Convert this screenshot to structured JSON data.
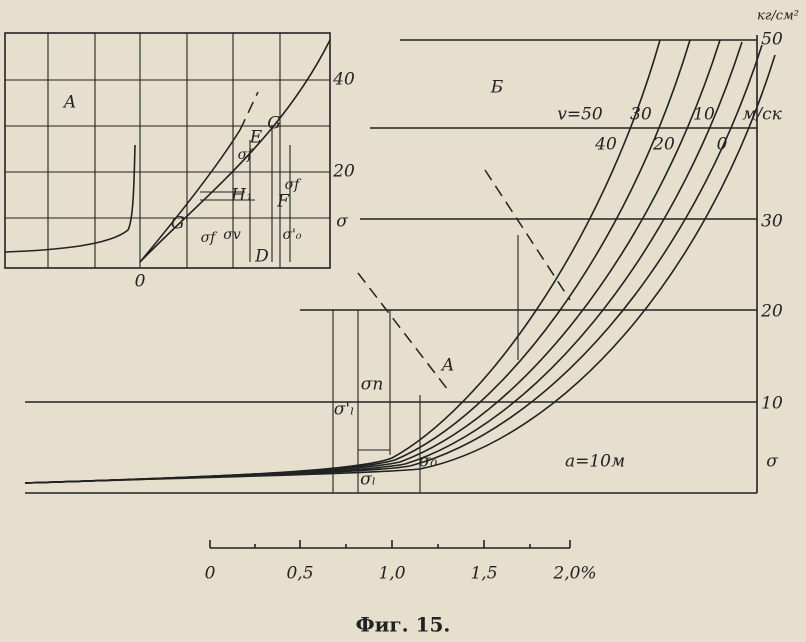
{
  "figure": {
    "caption": "Фиг. 15.",
    "panel_b": {
      "label": "Б",
      "unit": "кг/см²",
      "y_axis_symbol": "σ",
      "y_tick_labels": [
        "50",
        "30",
        "20",
        "10"
      ],
      "x_tick_labels": [
        "0",
        "0,5",
        "1,0",
        "1,5",
        "2,0%"
      ],
      "speed_prefix": "v=50",
      "speed_labels": [
        "40",
        "30",
        "20",
        "10",
        "0"
      ],
      "speed_unit": "м/ск",
      "point_label": "A",
      "parameter": "a=10м",
      "stress_labels": [
        "σ'ₗ",
        "σп",
        "σ₀",
        "σₗ"
      ]
    },
    "panel_a": {
      "label": "A",
      "y_tick_labels": [
        "40",
        "20"
      ],
      "y_axis_symbol": "σ",
      "point_labels": [
        "E",
        "G",
        "H₁",
        "F",
        "G'",
        "D",
        "0"
      ],
      "stress_labels": [
        "σf",
        "σv",
        "σf",
        "σ'₀",
        "σf"
      ]
    }
  }
}
